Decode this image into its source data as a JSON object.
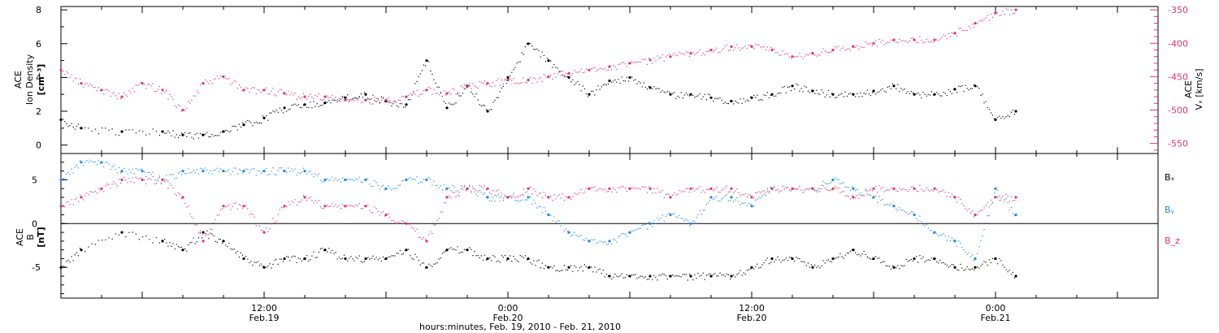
{
  "colors": {
    "black": "#000000",
    "blue": "#1e88e5",
    "red": "#e0356a"
  },
  "x_axis": {
    "title": "hours:minutes, Feb. 19, 2010 - Feb. 21, 2010",
    "range": [
      "2010-02-19T02:00",
      "2010-02-21T08:00"
    ],
    "major_ticks": [
      {
        "t": "2010-02-19T12:00",
        "time": "12:00",
        "date": "Feb.19"
      },
      {
        "t": "2010-02-20T00:00",
        "time": "0:00",
        "date": "Feb.20"
      },
      {
        "t": "2010-02-20T12:00",
        "time": "12:00",
        "date": "Feb.20"
      },
      {
        "t": "2010-02-21T00:00",
        "time": "0:00",
        "date": "Feb.21"
      }
    ],
    "minor_tick_hours": 2
  },
  "chart_data": [
    {
      "type": "scatter",
      "panel": "top",
      "ylabel_left": [
        "ACE",
        "Ion Density",
        "[cm⁻³]"
      ],
      "ylabel_right": [
        "ACE",
        "Vₓ [km/s]"
      ],
      "ylim_left": [
        -0.5,
        8.2
      ],
      "ylim_right": [
        -565,
        -345
      ],
      "yticks_left": [
        "0",
        "2",
        "4",
        "6",
        "8"
      ],
      "yticks_right": [
        "-350",
        "-400",
        "-450",
        "-500",
        "-550"
      ],
      "grid": false,
      "series": [
        {
          "name": "Ion Density",
          "color": "#000000",
          "axis": "left",
          "x": [
            "2010-02-19T02:00",
            "2010-02-19T03:00",
            "2010-02-19T05:00",
            "2010-02-19T07:00",
            "2010-02-19T08:00",
            "2010-02-19T09:00",
            "2010-02-19T10:00",
            "2010-02-19T11:00",
            "2010-02-19T12:00",
            "2010-02-19T13:00",
            "2010-02-19T14:00",
            "2010-02-19T15:00",
            "2010-02-19T16:00",
            "2010-02-19T17:00",
            "2010-02-19T18:00",
            "2010-02-19T19:00",
            "2010-02-19T20:00",
            "2010-02-19T21:00",
            "2010-02-19T22:00",
            "2010-02-19T23:00",
            "2010-02-20T00:00",
            "2010-02-20T01:00",
            "2010-02-20T02:00",
            "2010-02-20T03:00",
            "2010-02-20T04:00",
            "2010-02-20T05:00",
            "2010-02-20T06:00",
            "2010-02-20T07:00",
            "2010-02-20T08:00",
            "2010-02-20T09:00",
            "2010-02-20T10:00",
            "2010-02-20T11:00",
            "2010-02-20T12:00",
            "2010-02-20T13:00",
            "2010-02-20T14:00",
            "2010-02-20T15:00",
            "2010-02-20T16:00",
            "2010-02-20T17:00",
            "2010-02-20T18:00",
            "2010-02-20T19:00",
            "2010-02-20T20:00",
            "2010-02-20T21:00",
            "2010-02-20T22:00",
            "2010-02-20T23:00",
            "2010-02-21T00:00",
            "2010-02-21T01:00"
          ],
          "values": [
            1.5,
            1.0,
            0.8,
            0.8,
            0.6,
            0.6,
            0.8,
            1.2,
            1.6,
            2.2,
            2.4,
            2.5,
            2.8,
            3.0,
            2.6,
            2.4,
            5.0,
            2.2,
            3.5,
            2.0,
            4.0,
            6.0,
            5.0,
            4.0,
            3.0,
            3.8,
            4.0,
            3.4,
            3.0,
            3.0,
            2.8,
            2.6,
            2.8,
            3.0,
            3.5,
            3.2,
            3.0,
            3.0,
            3.2,
            3.5,
            3.0,
            3.0,
            3.3,
            3.5,
            1.5,
            2.0
          ]
        },
        {
          "name": "Vx",
          "color": "#e0356a",
          "axis": "right",
          "x": [
            "2010-02-19T02:00",
            "2010-02-19T03:00",
            "2010-02-19T04:00",
            "2010-02-19T05:00",
            "2010-02-19T06:00",
            "2010-02-19T07:00",
            "2010-02-19T08:00",
            "2010-02-19T09:00",
            "2010-02-19T10:00",
            "2010-02-19T11:00",
            "2010-02-19T12:00",
            "2010-02-19T13:00",
            "2010-02-19T14:00",
            "2010-02-19T15:00",
            "2010-02-19T16:00",
            "2010-02-19T17:00",
            "2010-02-19T18:00",
            "2010-02-19T19:00",
            "2010-02-19T20:00",
            "2010-02-19T21:00",
            "2010-02-19T22:00",
            "2010-02-19T23:00",
            "2010-02-20T00:00",
            "2010-02-20T01:00",
            "2010-02-20T02:00",
            "2010-02-20T03:00",
            "2010-02-20T04:00",
            "2010-02-20T05:00",
            "2010-02-20T06:00",
            "2010-02-20T07:00",
            "2010-02-20T08:00",
            "2010-02-20T09:00",
            "2010-02-20T10:00",
            "2010-02-20T11:00",
            "2010-02-20T12:00",
            "2010-02-20T13:00",
            "2010-02-20T14:00",
            "2010-02-20T15:00",
            "2010-02-20T16:00",
            "2010-02-20T17:00",
            "2010-02-20T18:00",
            "2010-02-20T19:00",
            "2010-02-20T20:00",
            "2010-02-20T21:00",
            "2010-02-20T22:00",
            "2010-02-20T23:00",
            "2010-02-21T00:00",
            "2010-02-21T01:00"
          ],
          "values": [
            -440,
            -460,
            -470,
            -480,
            -460,
            -470,
            -500,
            -460,
            -450,
            -470,
            -470,
            -475,
            -480,
            -480,
            -485,
            -485,
            -485,
            -480,
            -470,
            -475,
            -465,
            -460,
            -455,
            -455,
            -450,
            -445,
            -440,
            -435,
            -430,
            -425,
            -420,
            -415,
            -410,
            -405,
            -405,
            -410,
            -420,
            -415,
            -410,
            -405,
            -400,
            -395,
            -395,
            -395,
            -385,
            -370,
            -355,
            -350
          ]
        }
      ]
    },
    {
      "type": "scatter",
      "panel": "bottom",
      "ylabel_left": [
        "ACE",
        "B",
        "[nT]"
      ],
      "ylim": [
        -8.5,
        8
      ],
      "yticks": [
        "5",
        "0",
        "-5"
      ],
      "zero_line": true,
      "grid": false,
      "legend": "right",
      "series": [
        {
          "name": "Bₓ",
          "color": "#000000",
          "x": [
            "2010-02-19T02:00",
            "2010-02-19T03:00",
            "2010-02-19T05:00",
            "2010-02-19T07:00",
            "2010-02-19T08:00",
            "2010-02-19T09:00",
            "2010-02-19T10:00",
            "2010-02-19T11:00",
            "2010-02-19T12:00",
            "2010-02-19T13:00",
            "2010-02-19T14:00",
            "2010-02-19T15:00",
            "2010-02-19T16:00",
            "2010-02-19T17:00",
            "2010-02-19T18:00",
            "2010-02-19T19:00",
            "2010-02-19T20:00",
            "2010-02-19T21:00",
            "2010-02-19T22:00",
            "2010-02-19T23:00",
            "2010-02-20T00:00",
            "2010-02-20T01:00",
            "2010-02-20T02:00",
            "2010-02-20T03:00",
            "2010-02-20T04:00",
            "2010-02-20T05:00",
            "2010-02-20T06:00",
            "2010-02-20T07:00",
            "2010-02-20T08:00",
            "2010-02-20T09:00",
            "2010-02-20T10:00",
            "2010-02-20T11:00",
            "2010-02-20T12:00",
            "2010-02-20T13:00",
            "2010-02-20T14:00",
            "2010-02-20T15:00",
            "2010-02-20T16:00",
            "2010-02-20T17:00",
            "2010-02-20T18:00",
            "2010-02-20T19:00",
            "2010-02-20T20:00",
            "2010-02-20T21:00",
            "2010-02-20T22:00",
            "2010-02-20T23:00",
            "2010-02-21T00:00",
            "2010-02-21T01:00"
          ],
          "values": [
            -5,
            -3,
            -1,
            -2,
            -3,
            -1,
            -2,
            -4,
            -5,
            -4,
            -4,
            -3,
            -4,
            -4,
            -4,
            -3,
            -5,
            -3,
            -3,
            -4,
            -4,
            -4,
            -5,
            -5,
            -5,
            -6,
            -6,
            -6,
            -6,
            -6,
            -6,
            -6,
            -5,
            -4,
            -4,
            -5,
            -4,
            -3,
            -4,
            -5,
            -4,
            -4,
            -5,
            -5,
            -4,
            -6
          ]
        },
        {
          "name": "Bᵧ",
          "color": "#1e88e5",
          "x": [
            "2010-02-19T02:00",
            "2010-02-19T03:00",
            "2010-02-19T04:00",
            "2010-02-19T05:00",
            "2010-02-19T06:00",
            "2010-02-19T07:00",
            "2010-02-19T08:00",
            "2010-02-19T09:00",
            "2010-02-19T10:00",
            "2010-02-19T11:00",
            "2010-02-19T12:00",
            "2010-02-19T13:00",
            "2010-02-19T14:00",
            "2010-02-19T15:00",
            "2010-02-19T16:00",
            "2010-02-19T17:00",
            "2010-02-19T18:00",
            "2010-02-19T19:00",
            "2010-02-19T20:00",
            "2010-02-19T21:00",
            "2010-02-19T22:00",
            "2010-02-19T23:00",
            "2010-02-20T00:00",
            "2010-02-20T01:00",
            "2010-02-20T02:00",
            "2010-02-20T03:00",
            "2010-02-20T04:00",
            "2010-02-20T05:00",
            "2010-02-20T06:00",
            "2010-02-20T07:00",
            "2010-02-20T08:00",
            "2010-02-20T09:00",
            "2010-02-20T10:00",
            "2010-02-20T11:00",
            "2010-02-20T12:00",
            "2010-02-20T13:00",
            "2010-02-20T14:00",
            "2010-02-20T15:00",
            "2010-02-20T16:00",
            "2010-02-20T17:00",
            "2010-02-20T18:00",
            "2010-02-20T19:00",
            "2010-02-20T20:00",
            "2010-02-20T21:00",
            "2010-02-20T22:00",
            "2010-02-20T23:00",
            "2010-02-21T00:00",
            "2010-02-21T01:00"
          ],
          "values": [
            5,
            7,
            7,
            6,
            6,
            5,
            6,
            6,
            6,
            6,
            6,
            6,
            6,
            5,
            5,
            5,
            4,
            5,
            5,
            4,
            4,
            3,
            3,
            3,
            1,
            -1,
            -2,
            -2,
            -1,
            0,
            1,
            0,
            3,
            3,
            2,
            4,
            4,
            4,
            5,
            4,
            3,
            2,
            1,
            -1,
            -2,
            -4,
            4,
            1
          ]
        },
        {
          "name": "B_z",
          "color": "#e0356a",
          "x": [
            "2010-02-19T02:00",
            "2010-02-19T03:00",
            "2010-02-19T04:00",
            "2010-02-19T05:00",
            "2010-02-19T06:00",
            "2010-02-19T07:00",
            "2010-02-19T08:00",
            "2010-02-19T09:00",
            "2010-02-19T10:00",
            "2010-02-19T11:00",
            "2010-02-19T12:00",
            "2010-02-19T13:00",
            "2010-02-19T14:00",
            "2010-02-19T15:00",
            "2010-02-19T16:00",
            "2010-02-19T17:00",
            "2010-02-19T18:00",
            "2010-02-19T19:00",
            "2010-02-19T20:00",
            "2010-02-19T21:00",
            "2010-02-19T22:00",
            "2010-02-19T23:00",
            "2010-02-20T00:00",
            "2010-02-20T01:00",
            "2010-02-20T02:00",
            "2010-02-20T03:00",
            "2010-02-20T04:00",
            "2010-02-20T05:00",
            "2010-02-20T06:00",
            "2010-02-20T07:00",
            "2010-02-20T08:00",
            "2010-02-20T09:00",
            "2010-02-20T10:00",
            "2010-02-20T11:00",
            "2010-02-20T12:00",
            "2010-02-20T13:00",
            "2010-02-20T14:00",
            "2010-02-20T15:00",
            "2010-02-20T16:00",
            "2010-02-20T17:00",
            "2010-02-20T18:00",
            "2010-02-20T19:00",
            "2010-02-20T20:00",
            "2010-02-20T21:00",
            "2010-02-20T22:00",
            "2010-02-20T23:00",
            "2010-02-21T00:00",
            "2010-02-21T01:00"
          ],
          "values": [
            2,
            3,
            4,
            5,
            5,
            5,
            3,
            -2,
            2,
            2,
            -1,
            2,
            3,
            2,
            2,
            2,
            1,
            0,
            -2,
            3,
            4,
            4,
            3,
            4,
            3,
            3,
            4,
            4,
            4,
            4,
            3,
            4,
            4,
            4,
            3,
            4,
            4,
            4,
            4,
            3,
            4,
            4,
            4,
            4,
            3,
            1,
            3,
            3
          ]
        }
      ]
    }
  ]
}
